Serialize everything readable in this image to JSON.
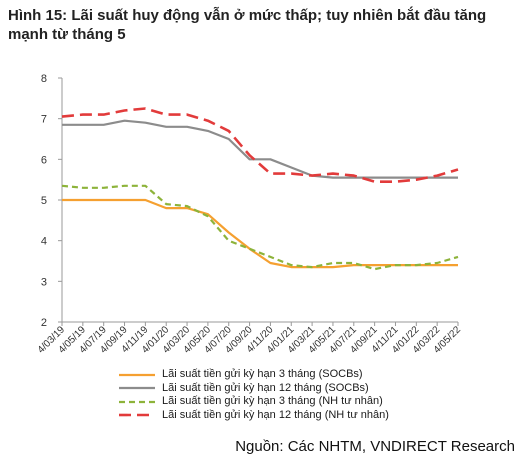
{
  "title": "Hình 15: Lãi suất huy động vẫn ở mức thấp; tuy nhiên bắt đầu tăng mạnh từ tháng 5",
  "source": "Nguồn: Các NHTM, VNDIRECT Research",
  "colors": {
    "socb3": "#F5A030",
    "socb12": "#8C8C8C",
    "pvt3": "#8DB33A",
    "pvt12": "#E23B3B"
  },
  "chart_data": {
    "type": "line",
    "title": "",
    "xlabel": "",
    "ylabel": "",
    "ylim": [
      2,
      8
    ],
    "yticks": [
      "2",
      "3",
      "4",
      "5",
      "6",
      "7",
      "8"
    ],
    "x": [
      "4/03/19",
      "4/05/19",
      "4/07/19",
      "4/09/19",
      "4/11/19",
      "4/01/20",
      "4/03/20",
      "4/05/20",
      "4/07/20",
      "4/09/20",
      "4/11/20",
      "4/01/21",
      "4/03/21",
      "4/05/21",
      "4/07/21",
      "4/09/21",
      "4/11/21",
      "4/01/22",
      "4/03/22",
      "4/05/22"
    ],
    "legend_position": "bottom",
    "series": [
      {
        "name": "Lãi suất tiền gửi kỳ hạn 3 tháng (SOCBs)",
        "style": "solid",
        "values": [
          5.0,
          5.0,
          5.0,
          5.0,
          5.0,
          4.8,
          4.8,
          4.65,
          4.2,
          3.8,
          3.45,
          3.35,
          3.35,
          3.35,
          3.4,
          3.4,
          3.4,
          3.4,
          3.4,
          3.4
        ]
      },
      {
        "name": "Lãi suất tiền gửi kỳ hạn 12 tháng (SOCBs)",
        "style": "solid",
        "values": [
          6.85,
          6.85,
          6.85,
          6.95,
          6.9,
          6.8,
          6.8,
          6.7,
          6.5,
          6.0,
          6.0,
          5.8,
          5.6,
          5.55,
          5.55,
          5.55,
          5.55,
          5.55,
          5.55,
          5.55
        ]
      },
      {
        "name": "Lãi suất tiền gửi kỳ hạn 3 tháng  (NH tư nhân)",
        "style": "dashed",
        "values": [
          5.35,
          5.3,
          5.3,
          5.35,
          5.35,
          4.9,
          4.85,
          4.6,
          4.0,
          3.8,
          3.6,
          3.4,
          3.35,
          3.45,
          3.45,
          3.3,
          3.4,
          3.4,
          3.45,
          3.6
        ]
      },
      {
        "name": "Lãi suất tiền gửi kỳ hạn 12 tháng (NH tư nhân)",
        "style": "longdash",
        "values": [
          7.05,
          7.1,
          7.1,
          7.2,
          7.25,
          7.1,
          7.1,
          6.95,
          6.7,
          6.1,
          5.65,
          5.65,
          5.6,
          5.65,
          5.6,
          5.45,
          5.45,
          5.5,
          5.6,
          5.75
        ]
      }
    ]
  }
}
